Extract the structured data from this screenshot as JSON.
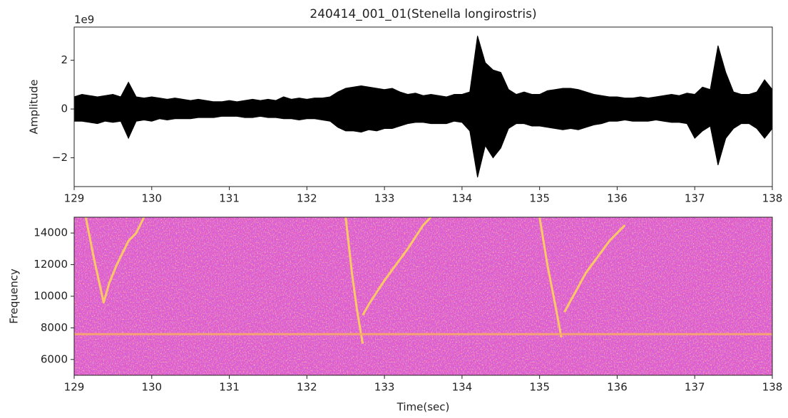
{
  "chart_data": [
    {
      "type": "envelope",
      "title": "240414_001_01(Stenella longirostris)",
      "y_label": "Amplitude",
      "y_offset_label": "1e9",
      "xlim": [
        129,
        138
      ],
      "xticks": [
        129,
        130,
        131,
        132,
        133,
        134,
        135,
        136,
        137,
        138
      ],
      "ylim": [
        -3.18,
        3.36
      ],
      "yticks": [
        {
          "value": -2,
          "label": "−2"
        },
        0,
        2
      ],
      "x": [
        129.0,
        129.1,
        129.2,
        129.3,
        129.4,
        129.5,
        129.6,
        129.7,
        129.8,
        129.9,
        130.0,
        130.1,
        130.2,
        130.3,
        130.4,
        130.5,
        130.6,
        130.7,
        130.8,
        130.9,
        131.0,
        131.1,
        131.2,
        131.3,
        131.4,
        131.5,
        131.6,
        131.7,
        131.8,
        131.9,
        132.0,
        132.1,
        132.2,
        132.3,
        132.4,
        132.5,
        132.6,
        132.7,
        132.8,
        132.9,
        133.0,
        133.1,
        133.2,
        133.3,
        133.4,
        133.5,
        133.6,
        133.7,
        133.8,
        133.9,
        134.0,
        134.1,
        134.2,
        134.3,
        134.4,
        134.5,
        134.6,
        134.7,
        134.8,
        134.9,
        135.0,
        135.1,
        135.2,
        135.3,
        135.4,
        135.5,
        135.6,
        135.7,
        135.8,
        135.9,
        136.0,
        136.1,
        136.2,
        136.3,
        136.4,
        136.5,
        136.6,
        136.7,
        136.8,
        136.9,
        137.0,
        137.1,
        137.2,
        137.3,
        137.4,
        137.5,
        137.6,
        137.7,
        137.8,
        137.9,
        138.0
      ],
      "series": [
        {
          "color": "#000000",
          "values": [
            0.5,
            0.6,
            0.55,
            0.5,
            0.55,
            0.6,
            0.5,
            1.1,
            0.5,
            0.45,
            0.5,
            0.45,
            0.4,
            0.45,
            0.4,
            0.35,
            0.4,
            0.35,
            0.3,
            0.3,
            0.35,
            0.3,
            0.35,
            0.4,
            0.35,
            0.4,
            0.35,
            0.5,
            0.4,
            0.45,
            0.4,
            0.45,
            0.45,
            0.5,
            0.7,
            0.85,
            0.9,
            0.95,
            0.9,
            0.85,
            0.8,
            0.85,
            0.7,
            0.6,
            0.65,
            0.55,
            0.6,
            0.55,
            0.5,
            0.6,
            0.6,
            0.7,
            3.0,
            1.9,
            1.6,
            1.5,
            0.8,
            0.6,
            0.7,
            0.6,
            0.6,
            0.75,
            0.8,
            0.85,
            0.85,
            0.8,
            0.7,
            0.6,
            0.55,
            0.5,
            0.5,
            0.45,
            0.45,
            0.5,
            0.45,
            0.5,
            0.55,
            0.6,
            0.55,
            0.65,
            0.6,
            0.9,
            0.8,
            2.6,
            1.5,
            0.7,
            0.6,
            0.6,
            0.7,
            1.2,
            0.8
          ]
        },
        {
          "color": "#000000",
          "values": [
            -0.5,
            -0.5,
            -0.55,
            -0.6,
            -0.5,
            -0.55,
            -0.5,
            -1.2,
            -0.5,
            -0.45,
            -0.5,
            -0.4,
            -0.45,
            -0.4,
            -0.4,
            -0.4,
            -0.35,
            -0.35,
            -0.35,
            -0.3,
            -0.3,
            -0.3,
            -0.35,
            -0.35,
            -0.3,
            -0.35,
            -0.35,
            -0.4,
            -0.4,
            -0.45,
            -0.4,
            -0.4,
            -0.45,
            -0.5,
            -0.75,
            -0.9,
            -0.9,
            -0.95,
            -0.85,
            -0.9,
            -0.8,
            -0.8,
            -0.7,
            -0.6,
            -0.55,
            -0.55,
            -0.6,
            -0.6,
            -0.6,
            -0.5,
            -0.55,
            -0.9,
            -2.8,
            -1.5,
            -2.0,
            -1.6,
            -0.8,
            -0.6,
            -0.6,
            -0.7,
            -0.7,
            -0.75,
            -0.8,
            -0.85,
            -0.8,
            -0.85,
            -0.75,
            -0.65,
            -0.6,
            -0.5,
            -0.5,
            -0.45,
            -0.5,
            -0.5,
            -0.5,
            -0.45,
            -0.5,
            -0.55,
            -0.55,
            -0.6,
            -1.2,
            -0.9,
            -0.7,
            -2.3,
            -1.2,
            -0.8,
            -0.6,
            -0.6,
            -0.8,
            -1.2,
            -0.8
          ]
        }
      ]
    },
    {
      "type": "spectrogram",
      "x_label": "Time(sec)",
      "y_label": "Frequency",
      "xlim": [
        129,
        138
      ],
      "xticks": [
        129,
        130,
        131,
        132,
        133,
        134,
        135,
        136,
        137,
        138
      ],
      "ylim": [
        5000,
        15000
      ],
      "yticks": [
        6000,
        8000,
        10000,
        12000,
        14000
      ],
      "series": [
        {
          "color": "#ffd35a",
          "x": [
            129.15,
            129.25,
            129.38,
            129.45,
            129.55,
            129.7,
            129.8,
            129.9
          ],
          "values": [
            15000,
            12500,
            9600,
            10800,
            12000,
            13500,
            14000,
            15000
          ]
        },
        {
          "color": "#ffd35a",
          "x": [
            132.5,
            132.58,
            132.65,
            132.72
          ],
          "values": [
            15000,
            11500,
            9000,
            7000
          ]
        },
        {
          "color": "#ffd35a",
          "x": [
            132.72,
            132.8,
            133.0,
            133.3,
            133.5,
            133.6
          ],
          "values": [
            8800,
            9500,
            11000,
            13000,
            14500,
            15000
          ]
        },
        {
          "color": "#ffd35a",
          "x": [
            135.0,
            135.1,
            135.2,
            135.28
          ],
          "values": [
            15000,
            12000,
            9500,
            7400
          ]
        },
        {
          "color": "#ffd35a",
          "x": [
            135.32,
            135.6,
            135.9,
            136.1
          ],
          "values": [
            9000,
            11500,
            13500,
            14500
          ]
        },
        {
          "color": "#f7a86a",
          "x": [
            129,
            138
          ],
          "values": [
            7600,
            7600
          ]
        }
      ]
    }
  ]
}
